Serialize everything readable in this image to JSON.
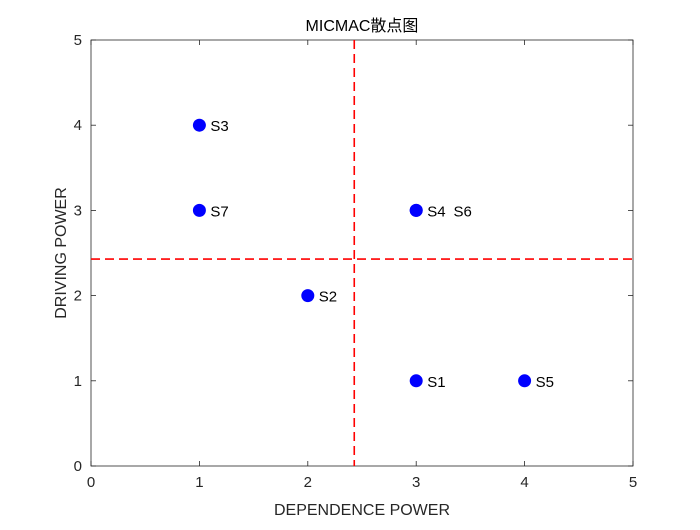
{
  "chart_data": {
    "type": "scatter",
    "title": "MICMAC散点图",
    "xlabel": "DEPENDENCE POWER",
    "ylabel": "DRIVING POWER",
    "xlim": [
      0,
      5
    ],
    "ylim": [
      0,
      5
    ],
    "xticks": [
      "0",
      "1",
      "2",
      "3",
      "4",
      "5"
    ],
    "yticks": [
      "0",
      "1",
      "2",
      "3",
      "4",
      "5"
    ],
    "grid": false,
    "points": [
      {
        "label": "S1",
        "x": 3,
        "y": 1
      },
      {
        "label": "S2",
        "x": 2,
        "y": 2
      },
      {
        "label": "S3",
        "x": 1,
        "y": 4
      },
      {
        "label": "S4",
        "x": 3,
        "y": 3
      },
      {
        "label": "S5",
        "x": 4,
        "y": 1
      },
      {
        "label": "S6",
        "x": 3,
        "y": 3
      },
      {
        "label": "S7",
        "x": 1,
        "y": 3
      }
    ],
    "reference_lines": {
      "x": 2.4286,
      "y": 2.4286
    },
    "marker_color": "#0000ff",
    "line_color": "#ff0000"
  }
}
